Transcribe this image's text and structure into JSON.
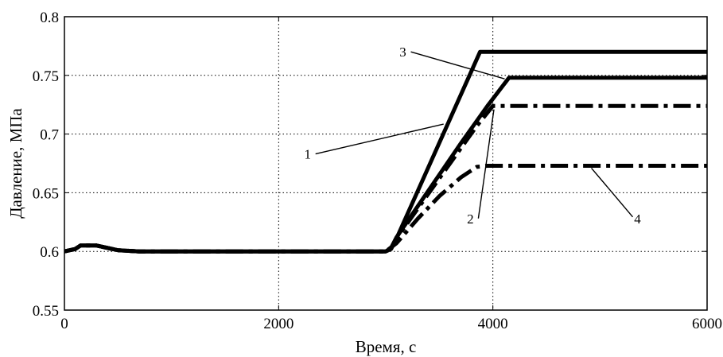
{
  "chart_data": {
    "type": "line",
    "title": "",
    "xlabel": "Время, с",
    "ylabel": "Давление, МПа",
    "xlim": [
      0,
      6000
    ],
    "ylim": [
      0.55,
      0.8
    ],
    "grid": true,
    "x_ticks": [
      0,
      2000,
      4000,
      6000
    ],
    "x_tick_labels": [
      "0",
      "2000",
      "4000",
      "6000"
    ],
    "y_ticks": [
      0.55,
      0.6,
      0.65,
      0.7,
      0.75,
      0.8
    ],
    "y_tick_labels": [
      "0.55",
      "0.6",
      "0.65",
      "0.7",
      "0.75",
      "0.8"
    ],
    "series": [
      {
        "name": "1",
        "style": "solid",
        "color": "#000000",
        "points": [
          [
            0,
            0.6
          ],
          [
            100,
            0.602
          ],
          [
            150,
            0.605
          ],
          [
            300,
            0.605
          ],
          [
            500,
            0.601
          ],
          [
            700,
            0.6
          ],
          [
            3000,
            0.6
          ],
          [
            3050,
            0.602
          ],
          [
            3100,
            0.611
          ],
          [
            3880,
            0.77
          ],
          [
            6000,
            0.77
          ]
        ]
      },
      {
        "name": "2",
        "style": "dashdot",
        "color": "#000000",
        "points": [
          [
            0,
            0.6
          ],
          [
            100,
            0.602
          ],
          [
            150,
            0.605
          ],
          [
            300,
            0.605
          ],
          [
            500,
            0.601
          ],
          [
            700,
            0.6
          ],
          [
            3000,
            0.6
          ],
          [
            3050,
            0.603
          ],
          [
            3100,
            0.611
          ],
          [
            3350,
            0.643
          ],
          [
            3600,
            0.675
          ],
          [
            3850,
            0.707
          ],
          [
            4000,
            0.724
          ],
          [
            6000,
            0.724
          ]
        ]
      },
      {
        "name": "3",
        "style": "solid",
        "color": "#000000",
        "points": [
          [
            0,
            0.6
          ],
          [
            100,
            0.602
          ],
          [
            150,
            0.605
          ],
          [
            300,
            0.605
          ],
          [
            500,
            0.601
          ],
          [
            700,
            0.6
          ],
          [
            3000,
            0.6
          ],
          [
            3050,
            0.603
          ],
          [
            3100,
            0.612
          ],
          [
            3400,
            0.652
          ],
          [
            3700,
            0.692
          ],
          [
            3950,
            0.724
          ],
          [
            4150,
            0.748
          ],
          [
            6000,
            0.748
          ]
        ]
      },
      {
        "name": "4",
        "style": "dashdot",
        "color": "#000000",
        "points": [
          [
            0,
            0.6
          ],
          [
            100,
            0.602
          ],
          [
            150,
            0.605
          ],
          [
            300,
            0.605
          ],
          [
            500,
            0.601
          ],
          [
            700,
            0.6
          ],
          [
            3000,
            0.6
          ],
          [
            3100,
            0.607
          ],
          [
            3300,
            0.628
          ],
          [
            3500,
            0.647
          ],
          [
            3700,
            0.663
          ],
          [
            3850,
            0.672
          ],
          [
            3950,
            0.673
          ],
          [
            6000,
            0.673
          ]
        ]
      }
    ],
    "annotations": [
      {
        "text": "1",
        "label_at": [
          2270,
          0.679
        ],
        "arrow_to": [
          3540,
          0.7085
        ]
      },
      {
        "text": "2",
        "label_at": [
          3790,
          0.624
        ],
        "arrow_to": [
          4010,
          0.721
        ]
      },
      {
        "text": "3",
        "label_at": [
          3160,
          0.766
        ],
        "arrow_to": [
          4110,
          0.747
        ]
      },
      {
        "text": "4",
        "label_at": [
          5350,
          0.624
        ],
        "arrow_to": [
          4920,
          0.671
        ]
      }
    ]
  }
}
